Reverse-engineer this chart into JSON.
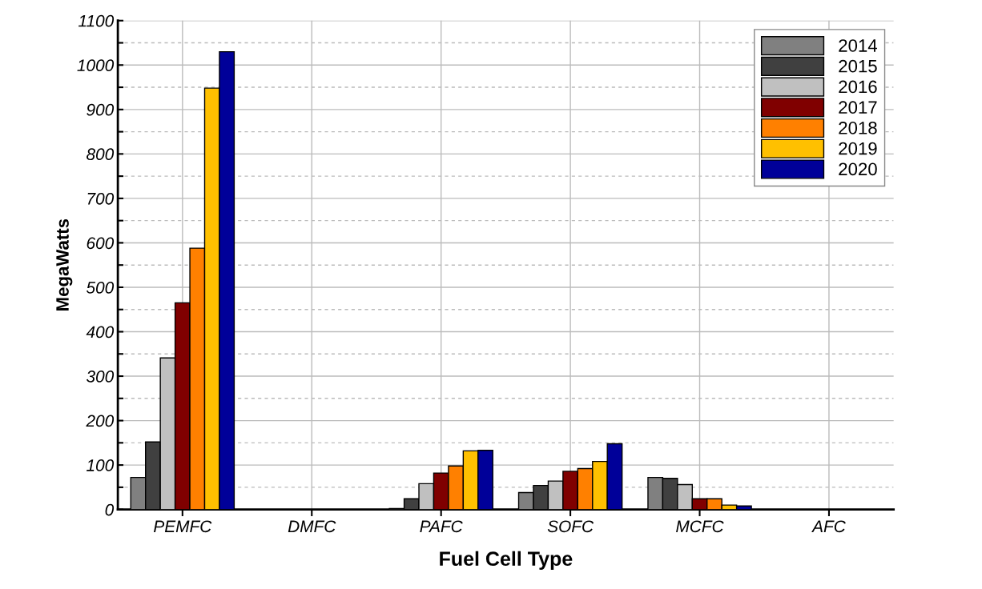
{
  "chart_data": {
    "type": "bar",
    "xlabel": "Fuel Cell Type",
    "ylabel": "MegaWatts",
    "categories": [
      "PEMFC",
      "DMFC",
      "PAFC",
      "SOFC",
      "MCFC",
      "AFC"
    ],
    "series": [
      {
        "name": "2014",
        "color": "#808080",
        "values": [
          72,
          null,
          2,
          38,
          72,
          null
        ]
      },
      {
        "name": "2015",
        "color": "#404040",
        "values": [
          152,
          null,
          24,
          54,
          70,
          null
        ]
      },
      {
        "name": "2016",
        "color": "#c0c0c0",
        "values": [
          341,
          null,
          58,
          64,
          56,
          null
        ]
      },
      {
        "name": "2017",
        "color": "#800000",
        "values": [
          465,
          null,
          82,
          86,
          24,
          null
        ]
      },
      {
        "name": "2018",
        "color": "#ff8000",
        "values": [
          588,
          null,
          98,
          92,
          24,
          null
        ]
      },
      {
        "name": "2019",
        "color": "#ffc000",
        "values": [
          948,
          null,
          132,
          108,
          10,
          null
        ]
      },
      {
        "name": "2020",
        "color": "#000099",
        "values": [
          1030,
          null,
          133,
          148,
          8,
          null
        ]
      }
    ],
    "ylim": [
      0,
      1100
    ],
    "yticks": [
      0,
      {
        "value": 50,
        "label": null
      },
      100,
      {
        "value": 150,
        "label": null
      },
      200,
      {
        "value": 250,
        "label": null
      },
      300,
      {
        "value": 350,
        "label": null
      },
      400,
      {
        "value": 450,
        "label": null
      },
      500,
      {
        "value": 550,
        "label": null
      },
      600,
      {
        "value": 650,
        "label": null
      },
      700,
      {
        "value": 750,
        "label": null
      },
      800,
      {
        "value": 850,
        "label": null
      },
      900,
      {
        "value": 950,
        "label": null
      },
      1000,
      {
        "value": 1050,
        "label": null
      },
      1100
    ],
    "grid": true,
    "legend": "top right"
  }
}
